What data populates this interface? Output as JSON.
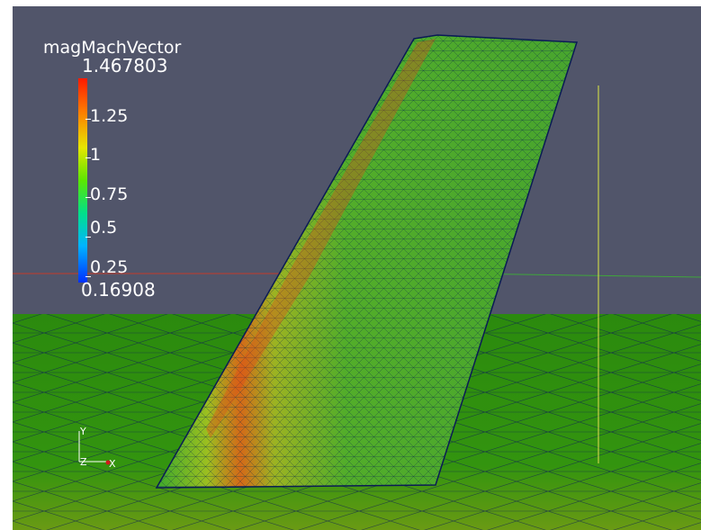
{
  "colormap": {
    "title": "magMachVector",
    "max_label": "1.467803",
    "min_label": "0.16908",
    "ticks": [
      {
        "label": "1.25",
        "value": 1.25
      },
      {
        "label": "1",
        "value": 1.0
      },
      {
        "label": "0.75",
        "value": 0.75
      },
      {
        "label": "0.5",
        "value": 0.5
      },
      {
        "label": "0.25",
        "value": 0.25
      }
    ],
    "range": [
      0.16908,
      1.467803
    ]
  },
  "axes_triad": {
    "y_label": "Y",
    "z_label": "Z",
    "x_label": "X"
  },
  "colors": {
    "background": "#51556a",
    "ground": "#2e8f10",
    "mesh_lines": "#0a1a55",
    "red_axis": "#c43c2b",
    "green_axis": "#3fa63b",
    "yellow_axis": "#c8d14a"
  }
}
